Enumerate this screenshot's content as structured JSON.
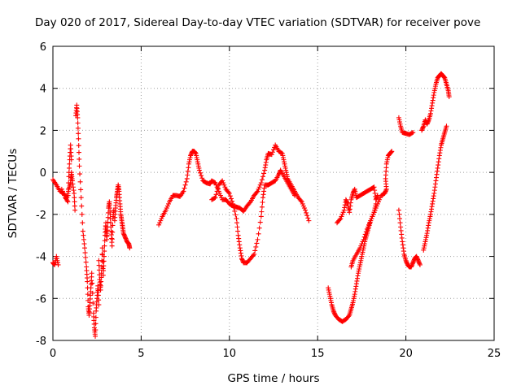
{
  "chart_data": {
    "type": "scatter",
    "title": "Day 020 of 2017, Sidereal Day-to-day VTEC variation (SDTVAR) for receiver pove",
    "xlabel": "GPS time / hours",
    "ylabel": "SDTVAR / TECUs",
    "xlim": [
      0,
      25
    ],
    "ylim": [
      -8,
      6
    ],
    "xticks": [
      "0",
      "5",
      "10",
      "15",
      "20",
      "25"
    ],
    "yticks": [
      "-8",
      "-6",
      "-4",
      "-2",
      "0",
      "2",
      "4",
      "6"
    ],
    "grid": true,
    "marker": "plus",
    "color": "#ff0000",
    "segments": [
      [
        [
          0.0,
          -4.3
        ],
        [
          0.1,
          -4.4
        ],
        [
          0.2,
          -4.0
        ],
        [
          0.3,
          -4.4
        ]
      ],
      [
        [
          0.0,
          -0.35
        ],
        [
          0.2,
          -0.6
        ],
        [
          0.4,
          -0.9
        ],
        [
          0.6,
          -1.0
        ],
        [
          0.8,
          -1.2
        ],
        [
          0.9,
          -0.8
        ],
        [
          1.0,
          -0.5
        ],
        [
          1.05,
          0.0
        ],
        [
          1.1,
          -0.4
        ],
        [
          1.2,
          -1.0
        ],
        [
          1.25,
          -1.8
        ]
      ],
      [
        [
          0.5,
          -0.8
        ],
        [
          0.7,
          -1.2
        ],
        [
          0.85,
          -1.4
        ],
        [
          0.9,
          -0.2
        ],
        [
          0.95,
          0.6
        ],
        [
          1.0,
          1.3
        ],
        [
          1.05,
          0.6
        ]
      ],
      [
        [
          1.3,
          2.7
        ],
        [
          1.35,
          3.2
        ],
        [
          1.4,
          2.6
        ],
        [
          1.45,
          1.6
        ],
        [
          1.5,
          0.3
        ],
        [
          1.6,
          -1.2
        ],
        [
          1.7,
          -2.8
        ],
        [
          1.8,
          -3.6
        ],
        [
          1.9,
          -4.5
        ],
        [
          1.95,
          -5.2
        ],
        [
          2.0,
          -6.4
        ],
        [
          2.05,
          -6.8
        ],
        [
          2.1,
          -6.2
        ],
        [
          2.15,
          -5.5
        ],
        [
          2.2,
          -4.8
        ],
        [
          2.3,
          -6.7
        ],
        [
          2.35,
          -7.4
        ],
        [
          2.4,
          -7.8
        ],
        [
          2.45,
          -6.6
        ],
        [
          2.5,
          -6.0
        ],
        [
          2.55,
          -5.4
        ],
        [
          2.6,
          -6.3
        ]
      ],
      [
        [
          2.6,
          -4.2
        ],
        [
          2.65,
          -5.1
        ],
        [
          2.7,
          -5.6
        ],
        [
          2.75,
          -4.8
        ],
        [
          2.8,
          -3.6
        ],
        [
          2.85,
          -4.9
        ],
        [
          2.9,
          -4.0
        ],
        [
          2.95,
          -3.0
        ],
        [
          3.0,
          -2.4
        ],
        [
          3.05,
          -3.2
        ],
        [
          3.1,
          -2.6
        ],
        [
          3.15,
          -1.7
        ],
        [
          3.2,
          -1.4
        ],
        [
          3.25,
          -2.0
        ],
        [
          3.3,
          -2.8
        ],
        [
          3.35,
          -3.5
        ],
        [
          3.4,
          -2.2
        ],
        [
          3.45,
          -1.8
        ]
      ],
      [
        [
          3.5,
          -2.3
        ],
        [
          3.55,
          -1.7
        ],
        [
          3.6,
          -1.2
        ],
        [
          3.65,
          -0.9
        ],
        [
          3.7,
          -0.6
        ],
        [
          3.75,
          -0.9
        ],
        [
          3.8,
          -1.5
        ],
        [
          3.85,
          -2.0
        ],
        [
          3.9,
          -2.3
        ],
        [
          3.95,
          -2.6
        ],
        [
          4.0,
          -2.9
        ],
        [
          4.1,
          -3.1
        ],
        [
          4.2,
          -3.3
        ],
        [
          4.3,
          -3.4
        ],
        [
          4.35,
          -3.6
        ]
      ],
      [
        [
          6.0,
          -2.5
        ],
        [
          6.2,
          -2.1
        ],
        [
          6.4,
          -1.8
        ],
        [
          6.6,
          -1.4
        ],
        [
          6.8,
          -1.1
        ],
        [
          7.0,
          -1.1
        ],
        [
          7.2,
          -1.15
        ],
        [
          7.4,
          -0.9
        ],
        [
          7.6,
          -0.3
        ],
        [
          7.7,
          0.4
        ],
        [
          7.8,
          0.8
        ],
        [
          7.9,
          1.0
        ],
        [
          8.0,
          1.0
        ],
        [
          8.1,
          0.9
        ],
        [
          8.2,
          0.5
        ],
        [
          8.3,
          0.1
        ],
        [
          8.5,
          -0.4
        ],
        [
          8.7,
          -0.5
        ],
        [
          8.9,
          -0.55
        ],
        [
          9.0,
          -0.4
        ],
        [
          9.2,
          -0.5
        ],
        [
          9.4,
          -0.9
        ],
        [
          9.6,
          -1.3
        ],
        [
          9.8,
          -1.3
        ],
        [
          10.0,
          -1.5
        ],
        [
          10.2,
          -1.6
        ],
        [
          10.4,
          -1.65
        ],
        [
          10.6,
          -1.7
        ],
        [
          10.8,
          -1.85
        ],
        [
          11.0,
          -1.6
        ],
        [
          11.2,
          -1.4
        ],
        [
          11.4,
          -1.1
        ],
        [
          11.6,
          -0.9
        ],
        [
          11.8,
          -0.5
        ],
        [
          12.0,
          0.1
        ],
        [
          12.1,
          0.6
        ],
        [
          12.2,
          0.9
        ],
        [
          12.4,
          0.85
        ],
        [
          12.6,
          1.3
        ],
        [
          12.8,
          1.0
        ],
        [
          13.0,
          0.9
        ],
        [
          13.1,
          0.5
        ],
        [
          13.2,
          0.1
        ],
        [
          13.3,
          -0.3
        ],
        [
          13.5,
          -0.6
        ],
        [
          13.7,
          -0.9
        ],
        [
          13.9,
          -1.2
        ],
        [
          14.1,
          -1.4
        ],
        [
          14.3,
          -1.8
        ],
        [
          14.5,
          -2.3
        ]
      ],
      [
        [
          9.0,
          -1.3
        ],
        [
          9.2,
          -1.2
        ],
        [
          9.4,
          -0.6
        ],
        [
          9.6,
          -0.4
        ],
        [
          9.8,
          -0.8
        ],
        [
          10.0,
          -1.0
        ],
        [
          10.2,
          -1.5
        ],
        [
          10.4,
          -2.2
        ],
        [
          10.5,
          -3.0
        ],
        [
          10.6,
          -3.6
        ],
        [
          10.7,
          -4.1
        ],
        [
          10.8,
          -4.3
        ],
        [
          11.0,
          -4.3
        ],
        [
          11.2,
          -4.1
        ],
        [
          11.4,
          -3.9
        ],
        [
          11.6,
          -3.2
        ],
        [
          11.8,
          -2.1
        ],
        [
          11.9,
          -1.2
        ],
        [
          12.0,
          -0.6
        ],
        [
          12.2,
          -0.6
        ],
        [
          12.4,
          -0.5
        ],
        [
          12.6,
          -0.4
        ],
        [
          12.8,
          -0.1
        ],
        [
          12.9,
          0.1
        ],
        [
          13.1,
          -0.2
        ],
        [
          13.3,
          -0.5
        ],
        [
          13.5,
          -0.8
        ],
        [
          13.7,
          -1.1
        ]
      ],
      [
        [
          15.6,
          -5.5
        ],
        [
          15.7,
          -5.9
        ],
        [
          15.8,
          -6.3
        ],
        [
          15.9,
          -6.6
        ],
        [
          16.0,
          -6.8
        ],
        [
          16.2,
          -7.0
        ],
        [
          16.4,
          -7.1
        ],
        [
          16.6,
          -7.0
        ],
        [
          16.8,
          -6.8
        ],
        [
          16.9,
          -6.5
        ],
        [
          17.0,
          -6.2
        ],
        [
          17.1,
          -5.8
        ],
        [
          17.2,
          -5.3
        ],
        [
          17.3,
          -4.8
        ],
        [
          17.4,
          -4.4
        ],
        [
          17.5,
          -4.0
        ],
        [
          17.6,
          -3.6
        ],
        [
          17.7,
          -3.2
        ],
        [
          17.8,
          -2.9
        ],
        [
          17.9,
          -2.6
        ],
        [
          18.0,
          -2.3
        ],
        [
          18.2,
          -1.9
        ],
        [
          18.3,
          -1.5
        ]
      ],
      [
        [
          16.1,
          -2.4
        ],
        [
          16.3,
          -2.2
        ],
        [
          16.5,
          -1.8
        ],
        [
          16.6,
          -1.3
        ],
        [
          16.7,
          -1.5
        ],
        [
          16.8,
          -1.9
        ],
        [
          16.9,
          -1.3
        ],
        [
          17.0,
          -1.0
        ],
        [
          17.1,
          -0.8
        ],
        [
          17.2,
          -1.2
        ],
        [
          17.4,
          -1.1
        ],
        [
          17.6,
          -1.0
        ],
        [
          17.8,
          -0.9
        ],
        [
          18.0,
          -0.8
        ],
        [
          18.2,
          -0.7
        ],
        [
          18.3,
          -1.3
        ],
        [
          18.4,
          -1.1
        ]
      ],
      [
        [
          16.9,
          -4.5
        ],
        [
          17.0,
          -4.2
        ],
        [
          17.2,
          -3.9
        ],
        [
          17.4,
          -3.6
        ],
        [
          17.6,
          -3.2
        ],
        [
          17.8,
          -2.7
        ],
        [
          18.0,
          -2.3
        ],
        [
          18.2,
          -1.9
        ],
        [
          18.4,
          -1.5
        ],
        [
          18.6,
          -1.1
        ],
        [
          18.8,
          -1.0
        ],
        [
          18.9,
          -0.8
        ],
        [
          18.85,
          -0.3
        ],
        [
          18.9,
          0.4
        ],
        [
          19.0,
          0.8
        ],
        [
          19.1,
          0.9
        ],
        [
          19.2,
          1.0
        ]
      ],
      [
        [
          19.6,
          2.6
        ],
        [
          19.7,
          2.2
        ],
        [
          19.8,
          1.9
        ],
        [
          20.0,
          1.85
        ],
        [
          20.2,
          1.8
        ],
        [
          20.4,
          1.9
        ]
      ],
      [
        [
          19.6,
          -1.8
        ],
        [
          19.7,
          -2.6
        ],
        [
          19.8,
          -3.3
        ],
        [
          19.9,
          -3.9
        ],
        [
          20.0,
          -4.2
        ],
        [
          20.1,
          -4.4
        ],
        [
          20.2,
          -4.5
        ],
        [
          20.3,
          -4.5
        ],
        [
          20.4,
          -4.3
        ],
        [
          20.5,
          -4.1
        ],
        [
          20.6,
          -4.0
        ],
        [
          20.7,
          -4.2
        ],
        [
          20.8,
          -4.4
        ]
      ],
      [
        [
          21.0,
          -3.7
        ],
        [
          21.1,
          -3.3
        ],
        [
          21.2,
          -2.9
        ],
        [
          21.3,
          -2.4
        ],
        [
          21.4,
          -2.0
        ],
        [
          21.5,
          -1.5
        ],
        [
          21.6,
          -1.0
        ],
        [
          21.7,
          -0.4
        ],
        [
          21.8,
          0.2
        ],
        [
          21.9,
          0.8
        ],
        [
          22.0,
          1.3
        ],
        [
          22.1,
          1.6
        ],
        [
          22.2,
          1.9
        ],
        [
          22.3,
          2.2
        ]
      ],
      [
        [
          20.9,
          2.0
        ],
        [
          21.0,
          2.2
        ],
        [
          21.1,
          2.5
        ],
        [
          21.2,
          2.3
        ],
        [
          21.3,
          2.5
        ],
        [
          21.4,
          2.8
        ],
        [
          21.5,
          3.3
        ],
        [
          21.6,
          3.8
        ],
        [
          21.7,
          4.2
        ],
        [
          21.8,
          4.5
        ],
        [
          21.9,
          4.6
        ],
        [
          22.0,
          4.7
        ],
        [
          22.1,
          4.6
        ],
        [
          22.2,
          4.5
        ],
        [
          22.3,
          4.2
        ],
        [
          22.4,
          3.9
        ],
        [
          22.45,
          3.6
        ]
      ]
    ]
  }
}
